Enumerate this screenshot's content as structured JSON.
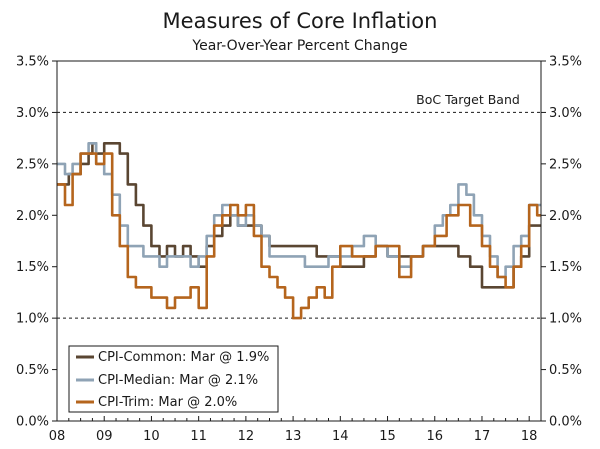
{
  "chart_data": {
    "type": "line",
    "title": "Measures of Core Inflation",
    "subtitle": "Year-Over-Year Percent Change",
    "ylim": [
      0,
      3.5
    ],
    "y_ticks": [
      "0.0%",
      "0.5%",
      "1.0%",
      "1.5%",
      "2.0%",
      "2.5%",
      "3.0%",
      "3.5%"
    ],
    "x_range": [
      2008.0,
      2018.25
    ],
    "x_ticks": [
      "08",
      "09",
      "10",
      "11",
      "12",
      "13",
      "14",
      "15",
      "16",
      "17",
      "18"
    ],
    "reference_lines": [
      1.0,
      3.0
    ],
    "annotation": "BoC Target Band",
    "grid": false,
    "legend_position": "bottom-left",
    "series": [
      {
        "name": "CPI-Common: Mar @ 1.9%",
        "color": "#5a4632",
        "x": [
          2008.0,
          2008.25,
          2008.5,
          2008.67,
          2008.75,
          2008.83,
          2009.0,
          2009.25,
          2009.33,
          2009.5,
          2009.67,
          2009.83,
          2010.0,
          2010.17,
          2010.33,
          2010.5,
          2010.67,
          2010.83,
          2011.0,
          2011.17,
          2011.33,
          2011.5,
          2011.67,
          2011.83,
          2012.0,
          2012.17,
          2012.33,
          2012.5,
          2012.75,
          2013.0,
          2013.25,
          2013.5,
          2013.75,
          2014.0,
          2014.25,
          2014.5,
          2014.75,
          2015.0,
          2015.25,
          2015.5,
          2015.75,
          2016.0,
          2016.25,
          2016.5,
          2016.75,
          2017.0,
          2017.25,
          2017.5,
          2017.67,
          2017.83,
          2018.0,
          2018.17
        ],
        "values": [
          2.3,
          2.4,
          2.5,
          2.6,
          2.7,
          2.6,
          2.7,
          2.7,
          2.6,
          2.3,
          2.1,
          1.9,
          1.7,
          1.6,
          1.7,
          1.6,
          1.7,
          1.6,
          1.5,
          1.7,
          1.8,
          1.9,
          2.0,
          1.9,
          1.9,
          1.9,
          1.8,
          1.7,
          1.7,
          1.7,
          1.7,
          1.6,
          1.6,
          1.5,
          1.5,
          1.6,
          1.7,
          1.6,
          1.6,
          1.6,
          1.7,
          1.7,
          1.7,
          1.6,
          1.5,
          1.3,
          1.3,
          1.3,
          1.5,
          1.6,
          1.9,
          1.9
        ]
      },
      {
        "name": "CPI-Median: Mar @ 2.1%",
        "color": "#8fa3b5",
        "x": [
          2008.0,
          2008.17,
          2008.33,
          2008.5,
          2008.67,
          2008.83,
          2009.0,
          2009.17,
          2009.33,
          2009.5,
          2009.67,
          2009.83,
          2010.0,
          2010.17,
          2010.33,
          2010.5,
          2010.67,
          2010.83,
          2011.0,
          2011.17,
          2011.33,
          2011.5,
          2011.67,
          2011.83,
          2012.0,
          2012.17,
          2012.33,
          2012.5,
          2012.75,
          2013.0,
          2013.25,
          2013.5,
          2013.75,
          2014.0,
          2014.25,
          2014.5,
          2014.75,
          2015.0,
          2015.25,
          2015.5,
          2015.75,
          2016.0,
          2016.17,
          2016.33,
          2016.5,
          2016.67,
          2016.83,
          2017.0,
          2017.17,
          2017.33,
          2017.5,
          2017.67,
          2017.83,
          2018.0,
          2018.17
        ],
        "values": [
          2.5,
          2.4,
          2.5,
          2.6,
          2.7,
          2.5,
          2.4,
          2.2,
          1.9,
          1.7,
          1.7,
          1.6,
          1.6,
          1.5,
          1.6,
          1.6,
          1.6,
          1.5,
          1.6,
          1.8,
          2.0,
          2.1,
          2.0,
          1.9,
          2.0,
          1.9,
          1.8,
          1.6,
          1.6,
          1.6,
          1.5,
          1.5,
          1.6,
          1.6,
          1.7,
          1.8,
          1.7,
          1.6,
          1.5,
          1.6,
          1.7,
          1.9,
          2.0,
          2.1,
          2.3,
          2.2,
          2.0,
          1.8,
          1.6,
          1.4,
          1.5,
          1.7,
          1.8,
          2.1,
          2.1
        ]
      },
      {
        "name": "CPI-Trim: Mar @ 2.0%",
        "color": "#b5651d",
        "x": [
          2008.0,
          2008.17,
          2008.33,
          2008.5,
          2008.67,
          2008.83,
          2009.0,
          2009.17,
          2009.33,
          2009.5,
          2009.67,
          2009.83,
          2010.0,
          2010.17,
          2010.33,
          2010.5,
          2010.67,
          2010.83,
          2011.0,
          2011.17,
          2011.33,
          2011.5,
          2011.67,
          2011.83,
          2012.0,
          2012.17,
          2012.33,
          2012.5,
          2012.67,
          2012.83,
          2013.0,
          2013.17,
          2013.33,
          2013.5,
          2013.67,
          2013.83,
          2014.0,
          2014.25,
          2014.5,
          2014.75,
          2015.0,
          2015.25,
          2015.5,
          2015.75,
          2016.0,
          2016.25,
          2016.5,
          2016.75,
          2017.0,
          2017.17,
          2017.33,
          2017.5,
          2017.67,
          2017.83,
          2018.0,
          2018.17
        ],
        "values": [
          2.3,
          2.1,
          2.4,
          2.6,
          2.6,
          2.5,
          2.6,
          2.0,
          1.7,
          1.4,
          1.3,
          1.3,
          1.2,
          1.2,
          1.1,
          1.2,
          1.2,
          1.3,
          1.1,
          1.6,
          1.9,
          2.0,
          2.1,
          2.0,
          2.1,
          1.8,
          1.5,
          1.4,
          1.3,
          1.2,
          1.0,
          1.1,
          1.2,
          1.3,
          1.2,
          1.5,
          1.7,
          1.6,
          1.6,
          1.7,
          1.7,
          1.4,
          1.6,
          1.7,
          1.8,
          2.0,
          2.1,
          1.9,
          1.7,
          1.5,
          1.4,
          1.3,
          1.5,
          1.7,
          2.1,
          2.0
        ]
      }
    ]
  }
}
